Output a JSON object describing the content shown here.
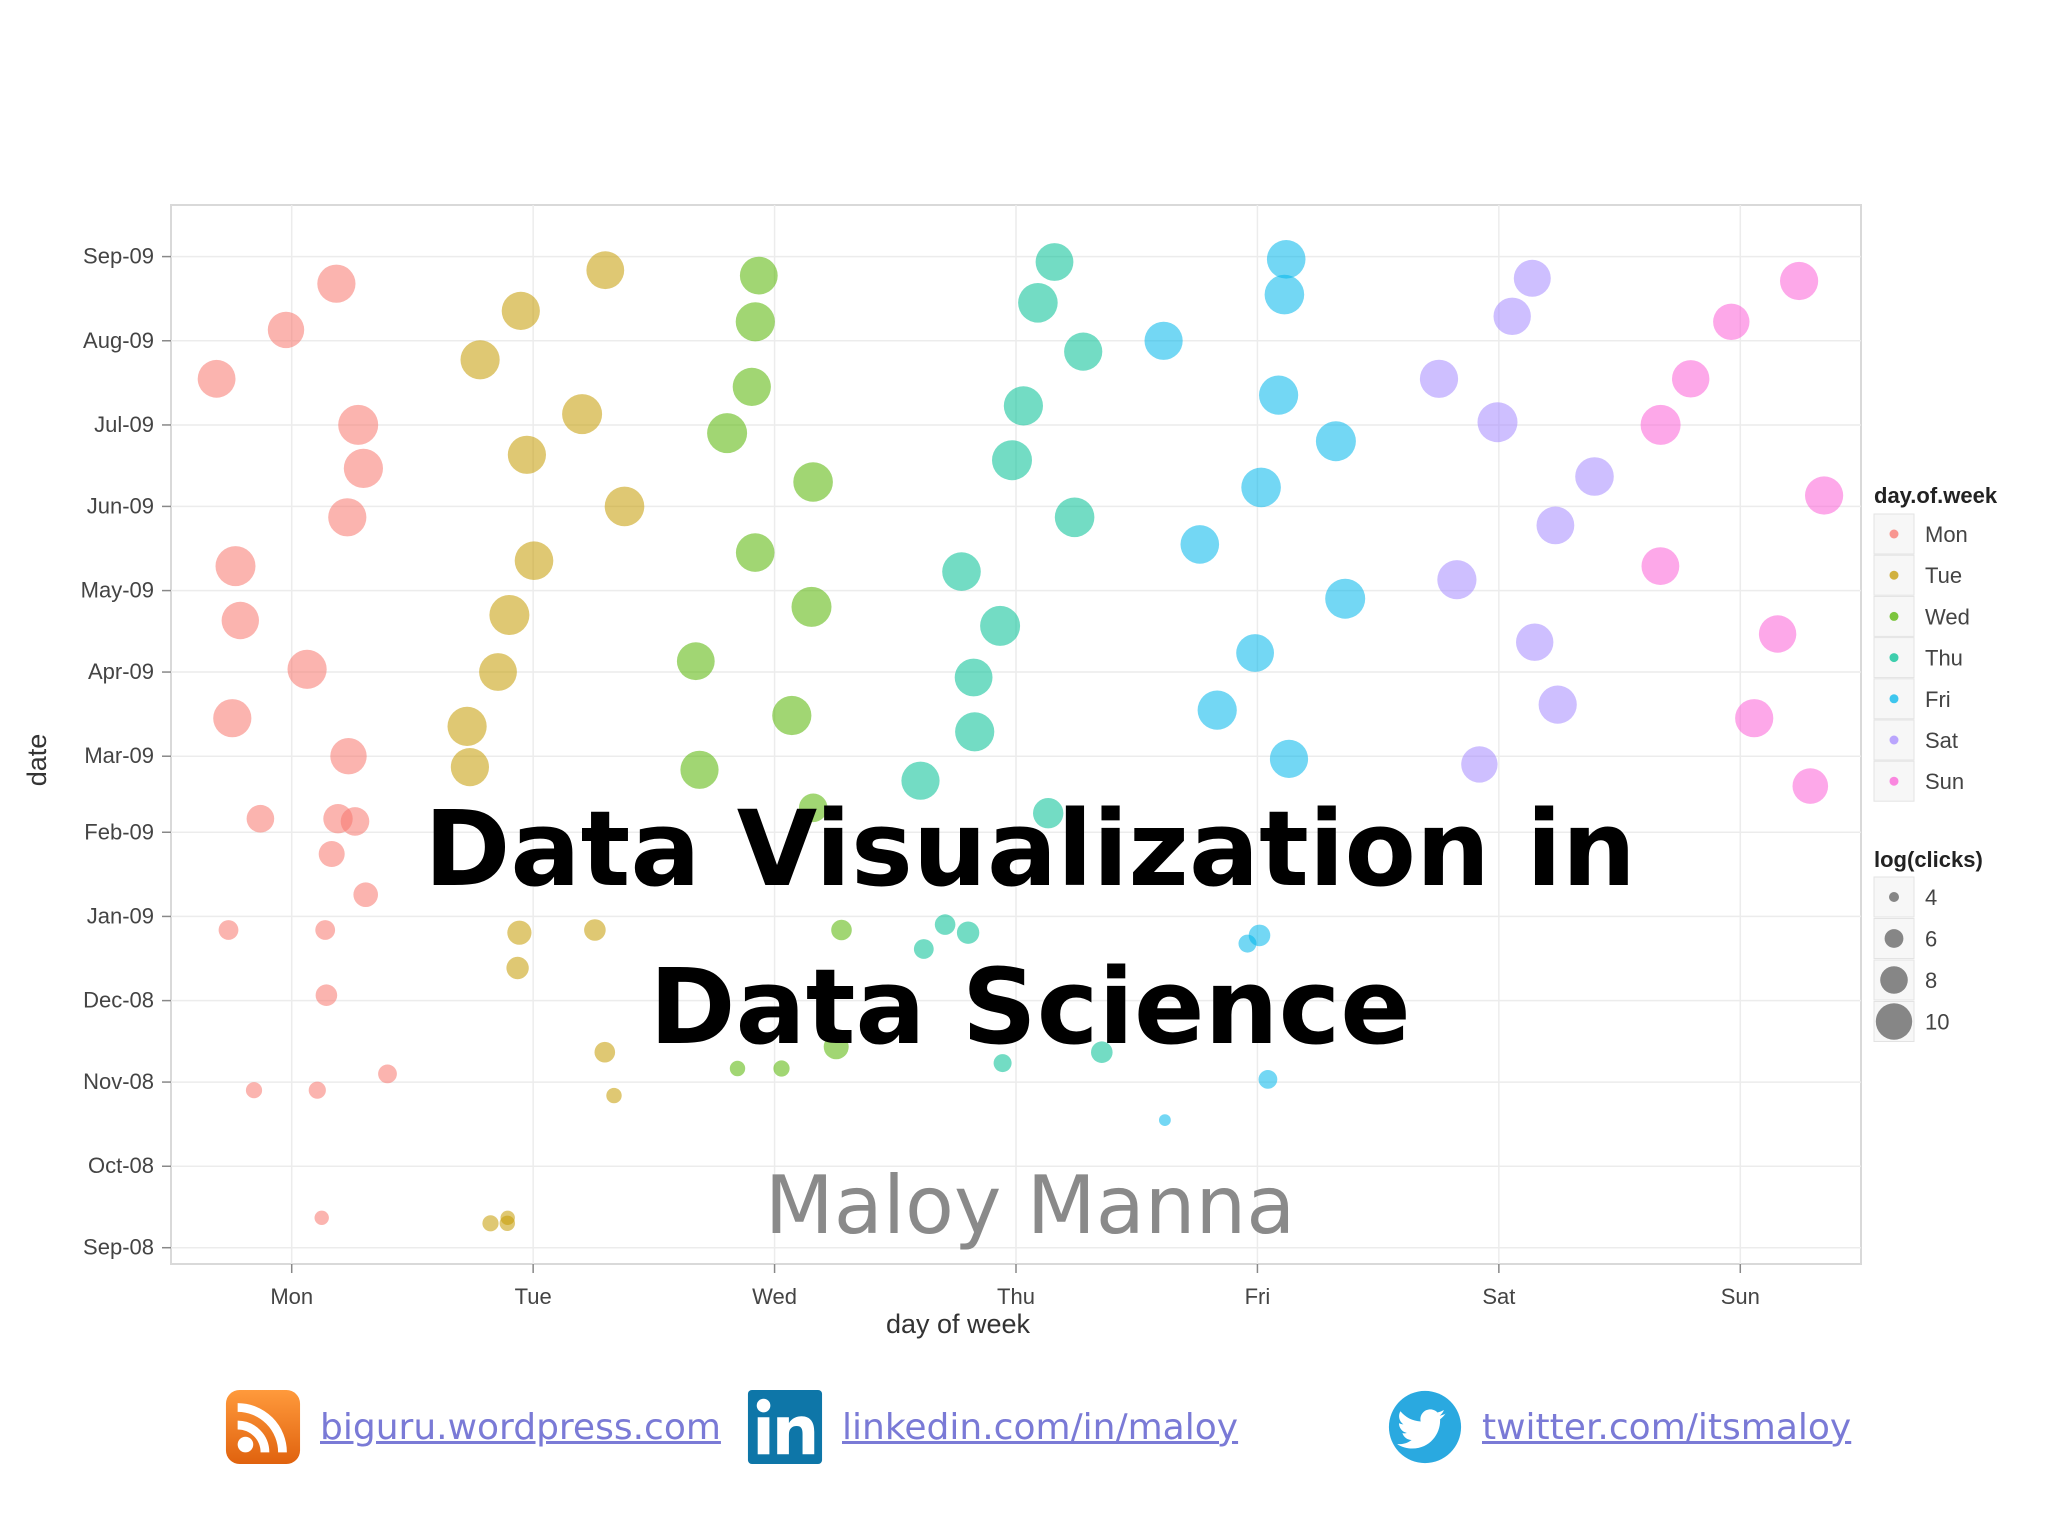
{
  "title_lines": [
    "Data Visualization in",
    "Data Science"
  ],
  "author": "Maloy Manna",
  "links": [
    {
      "icon": "rss-icon",
      "text": "biguru.wordpress.com"
    },
    {
      "icon": "linkedin-icon",
      "text": "linkedin.com/in/maloy"
    },
    {
      "icon": "twitter-icon",
      "text": "twitter.com/itsmaloy"
    }
  ],
  "chart_data": {
    "type": "scatter",
    "xlabel": "day of week",
    "ylabel": "date",
    "categories": [
      "Mon",
      "Tue",
      "Wed",
      "Thu",
      "Fri",
      "Sat",
      "Sun"
    ],
    "y_ticks": [
      "Sep-09",
      "Aug-09",
      "Jul-09",
      "Jun-09",
      "May-09",
      "Apr-09",
      "Mar-09",
      "Feb-09",
      "Jan-09",
      "Dec-08",
      "Nov-08",
      "Oct-08",
      "Sep-08"
    ],
    "y_range": [
      "2008-08-26",
      "2009-09-20"
    ],
    "grid": true,
    "jitter": true,
    "point_opacity": 0.55,
    "legend": [
      {
        "title": "day.of.week",
        "entries": [
          "Mon",
          "Tue",
          "Wed",
          "Thu",
          "Fri",
          "Sat",
          "Sun"
        ]
      },
      {
        "title": "log(clicks)",
        "entries": [
          "4",
          "6",
          "8",
          "10"
        ]
      }
    ],
    "legend_position": "right",
    "colors": {
      "Mon": "#f8766d",
      "Tue": "#c49a00",
      "Wed": "#53b400",
      "Thu": "#00c094",
      "Fri": "#00b6eb",
      "Sat": "#a58aff",
      "Sun": "#fb61d7"
    },
    "series": [
      {
        "name": "Mon",
        "points": [
          [
            "2008-09-12",
            4.2
          ],
          [
            "2008-10-29",
            4.6
          ],
          [
            "2008-10-29",
            4.8
          ],
          [
            "2008-11-04",
            5.2
          ],
          [
            "2008-12-03",
            5.8
          ],
          [
            "2008-12-27",
            5.4
          ],
          [
            "2008-12-27",
            5.4
          ],
          [
            "2009-01-09",
            6.5
          ],
          [
            "2009-01-24",
            6.8
          ],
          [
            "2009-02-05",
            7.4
          ],
          [
            "2009-02-06",
            7.6
          ],
          [
            "2009-02-06",
            7.2
          ],
          [
            "2009-03-01",
            9.2
          ],
          [
            "2009-03-15",
            9.6
          ],
          [
            "2009-04-02",
            9.8
          ],
          [
            "2009-04-20",
            9.4
          ],
          [
            "2009-05-10",
            10.0
          ],
          [
            "2009-05-28",
            9.6
          ],
          [
            "2009-06-15",
            9.8
          ],
          [
            "2009-07-01",
            10.0
          ],
          [
            "2009-07-18",
            9.5
          ],
          [
            "2009-08-05",
            9.2
          ],
          [
            "2009-08-22",
            9.6
          ]
        ]
      },
      {
        "name": "Tue",
        "points": [
          [
            "2008-09-10",
            4.4
          ],
          [
            "2008-09-10",
            4.6
          ],
          [
            "2008-09-12",
            4.2
          ],
          [
            "2008-10-27",
            4.4
          ],
          [
            "2008-11-12",
            5.6
          ],
          [
            "2008-12-13",
            6.0
          ],
          [
            "2008-12-26",
            6.4
          ],
          [
            "2008-12-27",
            5.8
          ],
          [
            "2009-02-25",
            9.6
          ],
          [
            "2009-03-12",
            9.8
          ],
          [
            "2009-04-01",
            9.5
          ],
          [
            "2009-04-22",
            10.0
          ],
          [
            "2009-05-12",
            9.7
          ],
          [
            "2009-06-01",
            9.9
          ],
          [
            "2009-06-20",
            9.6
          ],
          [
            "2009-07-05",
            10.0
          ],
          [
            "2009-07-25",
            9.8
          ],
          [
            "2009-08-12",
            9.6
          ],
          [
            "2009-08-27",
            9.5
          ]
        ]
      },
      {
        "name": "Wed",
        "points": [
          [
            "2008-11-14",
            6.6
          ],
          [
            "2008-11-06",
            4.4
          ],
          [
            "2008-11-06",
            4.6
          ],
          [
            "2008-12-27",
            5.6
          ],
          [
            "2009-02-10",
            7.4
          ],
          [
            "2009-02-24",
            9.6
          ],
          [
            "2009-03-16",
            9.8
          ],
          [
            "2009-04-05",
            9.5
          ],
          [
            "2009-04-25",
            10.0
          ],
          [
            "2009-05-15",
            9.7
          ],
          [
            "2009-06-10",
            9.9
          ],
          [
            "2009-06-28",
            10.0
          ],
          [
            "2009-07-15",
            9.6
          ],
          [
            "2009-08-08",
            9.8
          ],
          [
            "2009-08-25",
            9.5
          ]
        ]
      },
      {
        "name": "Thu",
        "points": [
          [
            "2008-11-12",
            5.8
          ],
          [
            "2008-11-08",
            5.0
          ],
          [
            "2008-12-20",
            5.4
          ],
          [
            "2008-12-26",
            6.0
          ],
          [
            "2008-12-29",
            5.6
          ],
          [
            "2009-02-08",
            7.8
          ],
          [
            "2009-02-20",
            9.6
          ],
          [
            "2009-03-10",
            9.8
          ],
          [
            "2009-03-30",
            9.5
          ],
          [
            "2009-04-18",
            10.0
          ],
          [
            "2009-05-08",
            9.7
          ],
          [
            "2009-05-28",
            9.9
          ],
          [
            "2009-06-18",
            10.0
          ],
          [
            "2009-07-08",
            9.8
          ],
          [
            "2009-07-28",
            9.6
          ],
          [
            "2009-08-15",
            9.9
          ],
          [
            "2009-08-30",
            9.5
          ]
        ]
      },
      {
        "name": "Fri",
        "points": [
          [
            "2008-10-18",
            3.6
          ],
          [
            "2008-11-02",
            5.2
          ],
          [
            "2008-12-22",
            5.0
          ],
          [
            "2008-12-25",
            5.8
          ],
          [
            "2009-02-28",
            9.6
          ],
          [
            "2009-03-18",
            9.8
          ],
          [
            "2009-04-08",
            9.5
          ],
          [
            "2009-04-28",
            10.0
          ],
          [
            "2009-05-18",
            9.7
          ],
          [
            "2009-06-08",
            9.9
          ],
          [
            "2009-06-25",
            10.0
          ],
          [
            "2009-07-12",
            9.8
          ],
          [
            "2009-08-01",
            9.6
          ],
          [
            "2009-08-18",
            9.9
          ],
          [
            "2009-08-31",
            9.7
          ]
        ]
      },
      {
        "name": "Sat",
        "points": [
          [
            "2009-02-26",
            9.2
          ],
          [
            "2009-03-20",
            9.6
          ],
          [
            "2009-04-12",
            9.4
          ],
          [
            "2009-05-05",
            9.8
          ],
          [
            "2009-05-25",
            9.5
          ],
          [
            "2009-06-12",
            9.7
          ],
          [
            "2009-07-02",
            10.0
          ],
          [
            "2009-07-18",
            9.6
          ],
          [
            "2009-08-10",
            9.4
          ],
          [
            "2009-08-24",
            9.3
          ]
        ]
      },
      {
        "name": "Sun",
        "points": [
          [
            "2009-02-18",
            9.0
          ],
          [
            "2009-03-15",
            9.6
          ],
          [
            "2009-04-15",
            9.4
          ],
          [
            "2009-05-10",
            9.5
          ],
          [
            "2009-06-05",
            9.6
          ],
          [
            "2009-07-01",
            10.0
          ],
          [
            "2009-07-18",
            9.4
          ],
          [
            "2009-08-08",
            9.2
          ],
          [
            "2009-08-23",
            9.6
          ]
        ]
      }
    ]
  }
}
